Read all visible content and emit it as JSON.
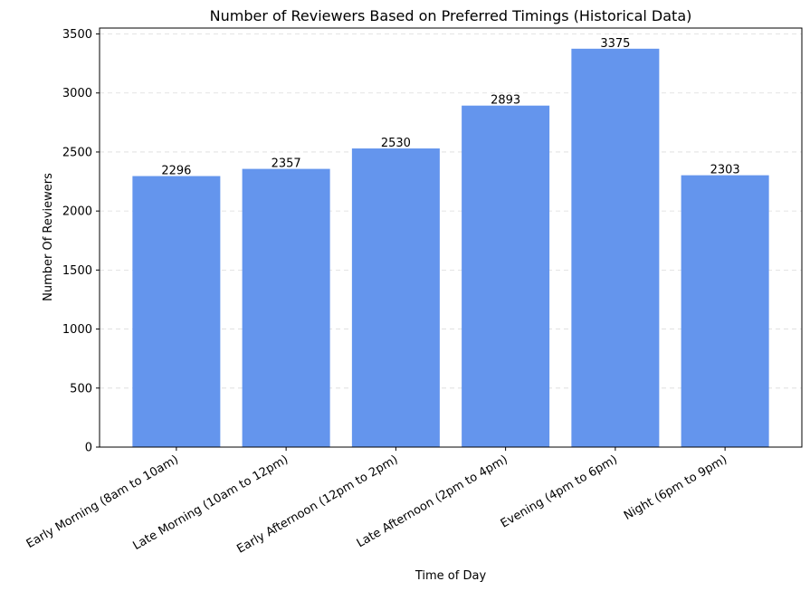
{
  "chart_data": {
    "type": "bar",
    "title": "Number of Reviewers Based on Preferred Timings (Historical Data)",
    "xlabel": "Time of Day",
    "ylabel": "Number Of Reviewers",
    "categories": [
      "Early Morning (8am to 10am)",
      "Late Morning (10am to 12pm)",
      "Early Afternoon (12pm to 2pm)",
      "Late Afternoon (2pm to 4pm)",
      "Evening (4pm to 6pm)",
      "Night (6pm to 9pm)"
    ],
    "values": [
      2296,
      2357,
      2530,
      2893,
      3375,
      2303
    ],
    "ylim": [
      0,
      3550
    ],
    "yticks": [
      0,
      500,
      1000,
      1500,
      2000,
      2500,
      3000,
      3500
    ],
    "grid": "horizontal dashed",
    "bar_color": "#6495ED"
  }
}
